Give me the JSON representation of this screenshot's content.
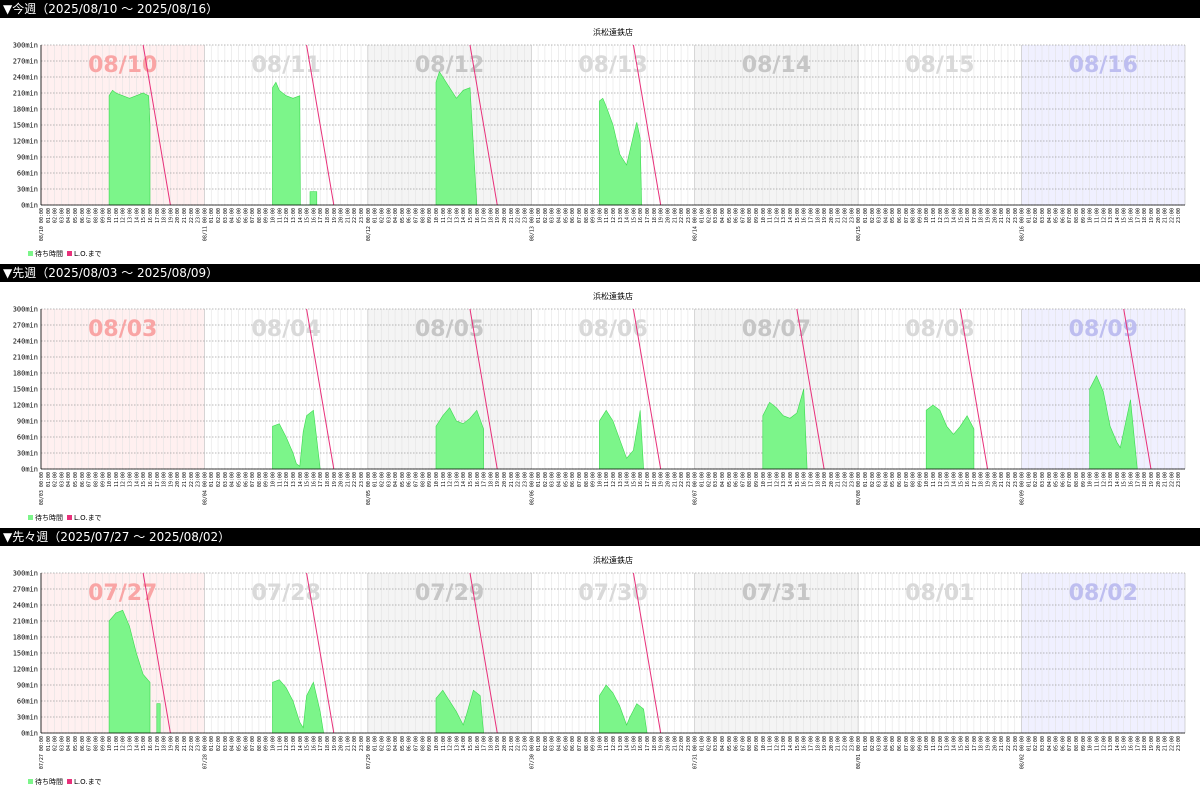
{
  "panels": [
    {
      "header": "▼今週（2025/08/10 ～ 2025/08/16）",
      "chart_title": "浜松遠鉄店",
      "days": [
        "08/10",
        "08/11",
        "08/12",
        "08/13",
        "08/14",
        "08/15",
        "08/16"
      ]
    },
    {
      "header": "▼先週（2025/08/03 ～ 2025/08/09）",
      "chart_title": "浜松遠鉄店",
      "days": [
        "08/03",
        "08/04",
        "08/05",
        "08/06",
        "08/07",
        "08/08",
        "08/09"
      ]
    },
    {
      "header": "▼先々週（2025/07/27 ～ 2025/08/02）",
      "chart_title": "浜松遠鉄店",
      "days": [
        "07/27",
        "07/28",
        "07/29",
        "07/30",
        "07/31",
        "08/01",
        "08/02"
      ]
    }
  ],
  "legend": {
    "wait": "待ち時間",
    "lo": "L.O.まで"
  },
  "colors": {
    "fill": "#7cf58a",
    "stroke": "#3ad94e",
    "lo_line": "#e8307a"
  },
  "chart_data": [
    {
      "type": "area",
      "title": "浜松遠鉄店",
      "xlabel": "",
      "ylabel": "",
      "ylim": [
        0,
        300
      ],
      "yticks": [
        "0min",
        "30min",
        "60min",
        "90min",
        "120min",
        "150min",
        "180min",
        "210min",
        "240min",
        "270min",
        "300min"
      ],
      "x_unit": "hour of day",
      "series": [
        {
          "day": "08/10",
          "points": [
            [
              10,
              0
            ],
            [
              10,
              205
            ],
            [
              10.5,
              215
            ],
            [
              11,
              210
            ],
            [
              12,
              205
            ],
            [
              13,
              200
            ],
            [
              14,
              205
            ],
            [
              15,
              210
            ],
            [
              15.8,
              205
            ],
            [
              16,
              150
            ],
            [
              16,
              0
            ]
          ],
          "lo_line": [
            [
              15,
              300
            ],
            [
              19,
              0
            ]
          ]
        },
        {
          "day": "08/11",
          "points": [
            [
              10,
              0
            ],
            [
              10,
              220
            ],
            [
              10.5,
              230
            ],
            [
              11,
              215
            ],
            [
              12,
              205
            ],
            [
              13,
              200
            ],
            [
              14,
              205
            ],
            [
              14.1,
              0
            ],
            [
              15.5,
              0
            ],
            [
              15.5,
              25
            ],
            [
              16.5,
              25
            ],
            [
              16.5,
              0
            ]
          ],
          "lo_line": [
            [
              15,
              300
            ],
            [
              19,
              0
            ]
          ]
        },
        {
          "day": "08/12",
          "points": [
            [
              10,
              0
            ],
            [
              10,
              230
            ],
            [
              10.5,
              250
            ],
            [
              11,
              240
            ],
            [
              12,
              220
            ],
            [
              13,
              200
            ],
            [
              14,
              215
            ],
            [
              15,
              220
            ],
            [
              16,
              0
            ]
          ],
          "lo_line": [
            [
              15,
              300
            ],
            [
              19,
              0
            ]
          ]
        },
        {
          "day": "08/13",
          "points": [
            [
              10,
              0
            ],
            [
              10,
              195
            ],
            [
              10.5,
              200
            ],
            [
              11,
              185
            ],
            [
              12,
              150
            ],
            [
              13,
              95
            ],
            [
              14,
              75
            ],
            [
              15,
              130
            ],
            [
              15.5,
              155
            ],
            [
              16,
              125
            ],
            [
              16.2,
              0
            ]
          ],
          "lo_line": [
            [
              15,
              300
            ],
            [
              19,
              0
            ]
          ]
        },
        {
          "day": "08/14",
          "points": [],
          "lo_line": []
        },
        {
          "day": "08/15",
          "points": [],
          "lo_line": []
        },
        {
          "day": "08/16",
          "points": [],
          "lo_line": []
        }
      ]
    },
    {
      "type": "area",
      "title": "浜松遠鉄店",
      "xlabel": "",
      "ylabel": "",
      "ylim": [
        0,
        300
      ],
      "yticks": [
        "0min",
        "30min",
        "60min",
        "90min",
        "120min",
        "150min",
        "180min",
        "210min",
        "240min",
        "270min",
        "300min"
      ],
      "x_unit": "hour of day",
      "series": [
        {
          "day": "08/03",
          "points": [],
          "lo_line": []
        },
        {
          "day": "08/04",
          "points": [
            [
              10,
              0
            ],
            [
              10,
              80
            ],
            [
              11,
              85
            ],
            [
              12,
              60
            ],
            [
              13,
              30
            ],
            [
              13.5,
              10
            ],
            [
              14,
              5
            ],
            [
              14.5,
              70
            ],
            [
              15,
              100
            ],
            [
              16,
              110
            ],
            [
              17,
              0
            ]
          ],
          "lo_line": [
            [
              15,
              300
            ],
            [
              19,
              0
            ]
          ]
        },
        {
          "day": "08/05",
          "points": [
            [
              10,
              0
            ],
            [
              10,
              80
            ],
            [
              11,
              100
            ],
            [
              12,
              115
            ],
            [
              13,
              90
            ],
            [
              14,
              85
            ],
            [
              15,
              95
            ],
            [
              16,
              110
            ],
            [
              17,
              75
            ],
            [
              17,
              0
            ]
          ],
          "lo_line": [
            [
              15,
              300
            ],
            [
              19,
              0
            ]
          ]
        },
        {
          "day": "08/06",
          "points": [
            [
              10,
              0
            ],
            [
              10,
              90
            ],
            [
              11,
              110
            ],
            [
              12,
              90
            ],
            [
              13,
              55
            ],
            [
              14,
              20
            ],
            [
              15,
              35
            ],
            [
              16,
              110
            ],
            [
              16.5,
              0
            ]
          ],
          "lo_line": [
            [
              15,
              300
            ],
            [
              19,
              0
            ]
          ]
        },
        {
          "day": "08/07",
          "points": [
            [
              10,
              0
            ],
            [
              10,
              100
            ],
            [
              11,
              125
            ],
            [
              12,
              115
            ],
            [
              13,
              100
            ],
            [
              14,
              95
            ],
            [
              15,
              105
            ],
            [
              16,
              150
            ],
            [
              16.5,
              0
            ]
          ],
          "lo_line": [
            [
              15,
              300
            ],
            [
              19,
              0
            ]
          ]
        },
        {
          "day": "08/08",
          "points": [
            [
              10,
              0
            ],
            [
              10,
              110
            ],
            [
              11,
              120
            ],
            [
              12,
              110
            ],
            [
              13,
              80
            ],
            [
              14,
              65
            ],
            [
              15,
              80
            ],
            [
              16,
              100
            ],
            [
              17,
              75
            ],
            [
              17,
              0
            ]
          ],
          "lo_line": [
            [
              15,
              300
            ],
            [
              19,
              0
            ]
          ]
        },
        {
          "day": "08/09",
          "points": [
            [
              10,
              0
            ],
            [
              10,
              150
            ],
            [
              11,
              175
            ],
            [
              12,
              145
            ],
            [
              13,
              80
            ],
            [
              14,
              50
            ],
            [
              14.5,
              40
            ],
            [
              15,
              70
            ],
            [
              16,
              130
            ],
            [
              17,
              0
            ]
          ],
          "lo_line": [
            [
              15,
              300
            ],
            [
              19,
              0
            ]
          ]
        }
      ]
    },
    {
      "type": "area",
      "title": "浜松遠鉄店",
      "xlabel": "",
      "ylabel": "",
      "ylim": [
        0,
        300
      ],
      "yticks": [
        "0min",
        "30min",
        "60min",
        "90min",
        "120min",
        "150min",
        "180min",
        "210min",
        "240min",
        "270min",
        "300min"
      ],
      "x_unit": "hour of day",
      "series": [
        {
          "day": "07/27",
          "points": [
            [
              10,
              0
            ],
            [
              10,
              210
            ],
            [
              11,
              225
            ],
            [
              12,
              230
            ],
            [
              13,
              200
            ],
            [
              14,
              150
            ],
            [
              15,
              110
            ],
            [
              16,
              95
            ],
            [
              16,
              0
            ],
            [
              17,
              0
            ],
            [
              17,
              55
            ],
            [
              17.5,
              55
            ],
            [
              17.5,
              0
            ]
          ],
          "lo_line": [
            [
              15,
              300
            ],
            [
              19,
              0
            ]
          ]
        },
        {
          "day": "07/28",
          "points": [
            [
              10,
              0
            ],
            [
              10,
              95
            ],
            [
              11,
              100
            ],
            [
              12,
              85
            ],
            [
              13,
              60
            ],
            [
              14,
              20
            ],
            [
              14.5,
              10
            ],
            [
              15,
              70
            ],
            [
              16,
              95
            ],
            [
              17,
              40
            ],
            [
              17.5,
              0
            ]
          ],
          "lo_line": [
            [
              15,
              300
            ],
            [
              19,
              0
            ]
          ]
        },
        {
          "day": "07/29",
          "points": [
            [
              10,
              0
            ],
            [
              10,
              65
            ],
            [
              11,
              80
            ],
            [
              12,
              60
            ],
            [
              13,
              40
            ],
            [
              14,
              15
            ],
            [
              14.5,
              35
            ],
            [
              15.5,
              80
            ],
            [
              16.5,
              70
            ],
            [
              17,
              0
            ]
          ],
          "lo_line": [
            [
              15,
              300
            ],
            [
              19,
              0
            ]
          ]
        },
        {
          "day": "07/30",
          "points": [
            [
              10,
              0
            ],
            [
              10,
              70
            ],
            [
              11,
              90
            ],
            [
              12,
              75
            ],
            [
              13,
              50
            ],
            [
              14,
              15
            ],
            [
              14.5,
              30
            ],
            [
              15.5,
              55
            ],
            [
              16.5,
              45
            ],
            [
              17,
              0
            ]
          ],
          "lo_line": [
            [
              15,
              300
            ],
            [
              19,
              0
            ]
          ]
        },
        {
          "day": "07/31",
          "points": [],
          "lo_line": []
        },
        {
          "day": "08/01",
          "points": [],
          "lo_line": []
        },
        {
          "day": "08/02",
          "points": [],
          "lo_line": []
        }
      ]
    }
  ]
}
